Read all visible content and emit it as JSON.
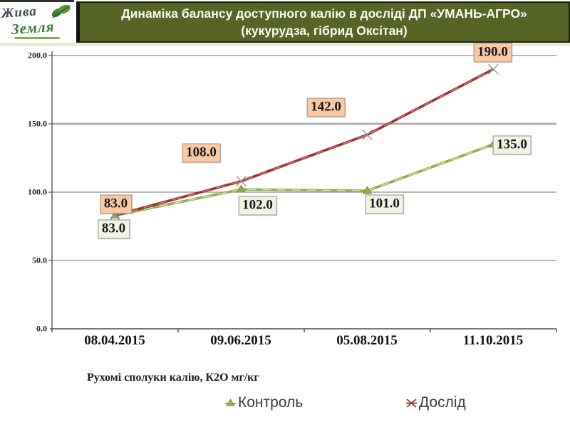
{
  "slide": {
    "logo": {
      "line1": "Жива",
      "line2": "Земля"
    },
    "title_line1": "Динаміка балансу доступного калію в досліді ДП «УМАНЬ-АГРО»",
    "title_line2": "(кукурудза, гібрид Оксітан)",
    "caption": "Рухомі сполуки калію, К2О мг/кг"
  },
  "chart_data": {
    "type": "line",
    "categories": [
      "08.04.2015",
      "09.06.2015",
      "05.08.2015",
      "11.10.2015"
    ],
    "series": [
      {
        "name": "Контроль",
        "values": [
          83.0,
          102.0,
          101.0,
          135.0
        ],
        "labels": [
          "83.0",
          "102.0",
          "101.0",
          "135.0"
        ],
        "color": "#8fae4c",
        "color_light": "#d8e4ba",
        "label_bg": "#eff5e3",
        "marker": "triangle"
      },
      {
        "name": "Дослід",
        "values": [
          83.0,
          108.0,
          142.0,
          190.0
        ],
        "labels": [
          "83.0",
          "108.0",
          "142.0",
          "190.0"
        ],
        "color": "#a03030",
        "color_light": "#c97c74",
        "label_bg": "#fac9a2",
        "marker": "x"
      }
    ],
    "ylim": [
      0,
      200
    ],
    "yticks": [
      "200.0",
      "150.0",
      "100.0",
      "50.0",
      "0.0"
    ],
    "grid": true,
    "legend_position": "bottom",
    "title": "",
    "xlabel": "",
    "ylabel": ""
  }
}
